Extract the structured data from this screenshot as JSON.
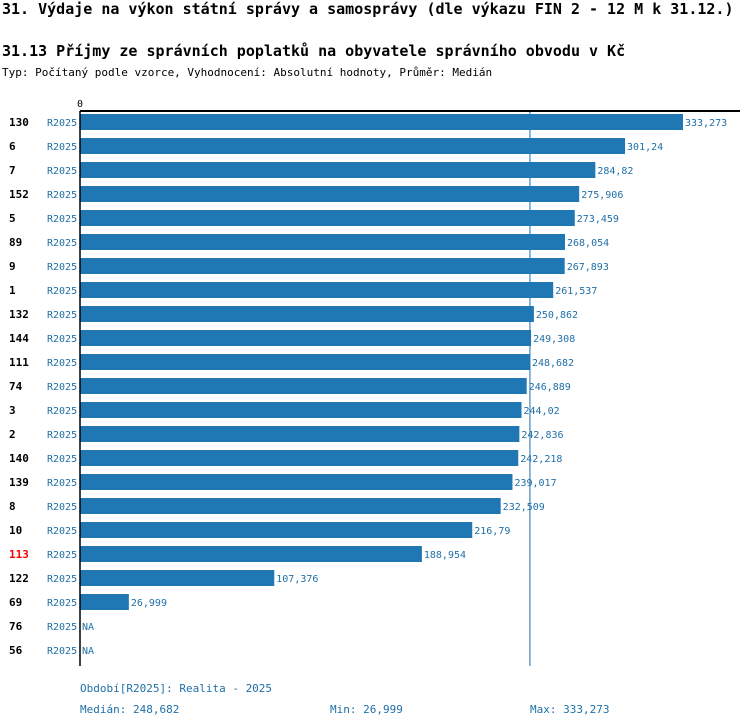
{
  "header": {
    "title": "31. Výdaje na výkon státní správy a samosprávy (dle výkazu FIN 2 - 12 M k 31.12.)",
    "chart_title": "31.13 Příjmy ze správních poplatků na obyvatele správního obvodu v Kč",
    "subtitle": "Typ: Počítaný podle vzorce, Vyhodnocení: Absolutní hodnoty, Průměr: Medián"
  },
  "colors": {
    "bar": "#1f77b4",
    "highlight": "#ff0000",
    "label": "#1f6fa8",
    "axis": "#000000"
  },
  "chart_data": {
    "type": "bar",
    "orientation": "horizontal",
    "axis_zero_label": "0",
    "xlim": [
      0,
      333.273
    ],
    "highlight_id": "113",
    "median_line": 248.682,
    "rows": [
      {
        "id": "130",
        "period": "R2025",
        "value": 333.273,
        "label": "333,273"
      },
      {
        "id": "6",
        "period": "R2025",
        "value": 301.24,
        "label": "301,24"
      },
      {
        "id": "7",
        "period": "R2025",
        "value": 284.82,
        "label": "284,82"
      },
      {
        "id": "152",
        "period": "R2025",
        "value": 275.906,
        "label": "275,906"
      },
      {
        "id": "5",
        "period": "R2025",
        "value": 273.459,
        "label": "273,459"
      },
      {
        "id": "89",
        "period": "R2025",
        "value": 268.054,
        "label": "268,054"
      },
      {
        "id": "9",
        "period": "R2025",
        "value": 267.893,
        "label": "267,893"
      },
      {
        "id": "1",
        "period": "R2025",
        "value": 261.537,
        "label": "261,537"
      },
      {
        "id": "132",
        "period": "R2025",
        "value": 250.862,
        "label": "250,862"
      },
      {
        "id": "144",
        "period": "R2025",
        "value": 249.308,
        "label": "249,308"
      },
      {
        "id": "111",
        "period": "R2025",
        "value": 248.682,
        "label": "248,682"
      },
      {
        "id": "74",
        "period": "R2025",
        "value": 246.889,
        "label": "246,889"
      },
      {
        "id": "3",
        "period": "R2025",
        "value": 244.02,
        "label": "244,02"
      },
      {
        "id": "2",
        "period": "R2025",
        "value": 242.836,
        "label": "242,836"
      },
      {
        "id": "140",
        "period": "R2025",
        "value": 242.218,
        "label": "242,218"
      },
      {
        "id": "139",
        "period": "R2025",
        "value": 239.017,
        "label": "239,017"
      },
      {
        "id": "8",
        "period": "R2025",
        "value": 232.509,
        "label": "232,509"
      },
      {
        "id": "10",
        "period": "R2025",
        "value": 216.79,
        "label": "216,79"
      },
      {
        "id": "113",
        "period": "R2025",
        "value": 188.954,
        "label": "188,954"
      },
      {
        "id": "122",
        "period": "R2025",
        "value": 107.376,
        "label": "107,376"
      },
      {
        "id": "69",
        "period": "R2025",
        "value": 26.999,
        "label": "26,999"
      },
      {
        "id": "76",
        "period": "R2025",
        "value": null,
        "label": "NA"
      },
      {
        "id": "56",
        "period": "R2025",
        "value": null,
        "label": "NA"
      }
    ]
  },
  "footer": {
    "period": "Období[R2025]: Realita - 2025",
    "median": "Medián: 248,682",
    "min": "Min: 26,999",
    "max": "Max: 333,273"
  }
}
